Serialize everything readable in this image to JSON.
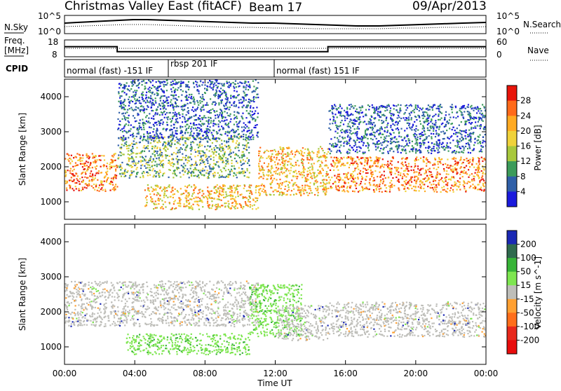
{
  "header": {
    "station": "Christmas Valley East (fitACF)",
    "beam": "Beam 17",
    "date": "09/Apr/2013"
  },
  "noise_panel": {
    "left_label": "N.Sky",
    "left_ticks": [
      "10^5",
      "10^0"
    ],
    "right_ticks": [
      "10^5",
      "10^0"
    ],
    "right_label": "N.Search"
  },
  "freq_panel": {
    "label_line1": "Freq.",
    "label_line2": "[MHz]",
    "left_ticks": [
      "18",
      "8"
    ],
    "right_ticks": [
      "60",
      "0"
    ],
    "right_label": "Nave"
  },
  "cpid_panel": {
    "label": "CPID",
    "programs": [
      "normal (fast) -151 IF",
      "rbsp 201 IF",
      "normal (fast) 151 IF"
    ]
  },
  "time_axis": {
    "label": "Time UT",
    "ticks": [
      "00:00",
      "04:00",
      "08:00",
      "12:00",
      "16:00",
      "20:00",
      "00:00"
    ]
  },
  "power_colorbar": {
    "label": "Power [dB]",
    "ticks": [
      "28",
      "24",
      "20",
      "16",
      "12",
      "8",
      "4"
    ],
    "colors": [
      "#e8140a",
      "#ff6a1a",
      "#ffaa22",
      "#f0d23a",
      "#a8c83c",
      "#3c9b5a",
      "#2f5fa8",
      "#1a1adc"
    ]
  },
  "velocity_colorbar": {
    "label": "Velocity [m s^-1]",
    "ticks": [
      "200",
      "100",
      "50",
      "15",
      "-15",
      "-50",
      "-100",
      "-200"
    ],
    "colors": [
      "#1a28b4",
      "#2f6a4e",
      "#37b437",
      "#7ee650",
      "#bebeb9",
      "#ffa032",
      "#ff6e1a",
      "#e8281c",
      "#e80c0c"
    ]
  },
  "chart_data": {
    "type": "heatmap",
    "panels": [
      {
        "name": "power",
        "ylabel": "Slant Range [km]",
        "y_ticks": [
          "1000",
          "2000",
          "3000",
          "4000"
        ],
        "ylim": [
          500,
          4500
        ],
        "xlim_hours": [
          0,
          24
        ],
        "units": "dB",
        "bands": [
          {
            "hours": [
              0,
              3
            ],
            "range_km": [
              1300,
              2400
            ],
            "typical_value": 24
          },
          {
            "hours": [
              3,
              10.5
            ],
            "range_km": [
              1700,
              2900
            ],
            "typical_value": 12
          },
          {
            "hours": [
              4.5,
              11
            ],
            "range_km": [
              800,
              1500
            ],
            "typical_value": 20
          },
          {
            "hours": [
              11,
              15
            ],
            "range_km": [
              1200,
              2600
            ],
            "typical_value": 20
          },
          {
            "hours": [
              15,
              24
            ],
            "range_km": [
              1300,
              2300
            ],
            "typical_value": 26
          },
          {
            "hours": [
              3,
              11
            ],
            "range_km": [
              2800,
              4500
            ],
            "typical_value": 6
          },
          {
            "hours": [
              15,
              24
            ],
            "range_km": [
              2400,
              3800
            ],
            "typical_value": 6
          }
        ]
      },
      {
        "name": "velocity",
        "ylabel": "Slant Range [km]",
        "y_ticks": [
          "1000",
          "2000",
          "3000",
          "4000"
        ],
        "ylim": [
          500,
          4500
        ],
        "xlim_hours": [
          0,
          24
        ],
        "units": "m s^-1",
        "bands": [
          {
            "hours": [
              0,
              11
            ],
            "range_km": [
              1600,
              2900
            ],
            "typical_value": 0
          },
          {
            "hours": [
              3.5,
              10.5
            ],
            "range_km": [
              800,
              1400
            ],
            "typical_value": 30
          },
          {
            "hours": [
              10.5,
              13.5
            ],
            "range_km": [
              1300,
              2800
            ],
            "typical_value": 30
          },
          {
            "hours": [
              12,
              15
            ],
            "range_km": [
              1200,
              2200
            ],
            "typical_value": 0
          },
          {
            "hours": [
              15,
              24
            ],
            "range_km": [
              1300,
              2300
            ],
            "typical_value": 0
          }
        ]
      }
    ],
    "frequency_mhz": [
      {
        "hours": [
          0,
          3
        ],
        "value": 14
      },
      {
        "hours": [
          3,
          15
        ],
        "value": 11
      },
      {
        "hours": [
          15,
          24
        ],
        "value": 14
      }
    ]
  }
}
